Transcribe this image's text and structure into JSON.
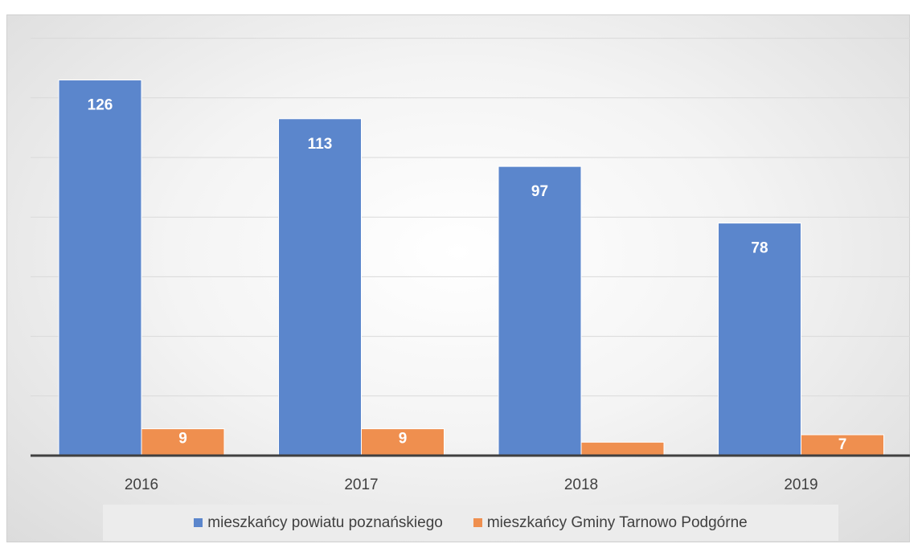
{
  "chart_data": {
    "type": "bar",
    "categories": [
      "2016",
      "2017",
      "2018",
      "2019"
    ],
    "series": [
      {
        "name": "mieszkańcy powiatu poznańskiego",
        "color": "#5b86cc",
        "values": [
          126,
          113,
          97,
          78
        ],
        "labels": [
          "126",
          "113",
          "97",
          "78"
        ]
      },
      {
        "name": "mieszkańcy Gminy Tarnowo Podgórne",
        "color": "#ef8f4f",
        "values": [
          9,
          9,
          4.5,
          7
        ],
        "labels": [
          "9",
          "9",
          "",
          "7"
        ]
      }
    ],
    "ylim": [
      0,
      140
    ],
    "grid": true,
    "legend": "bottom"
  }
}
